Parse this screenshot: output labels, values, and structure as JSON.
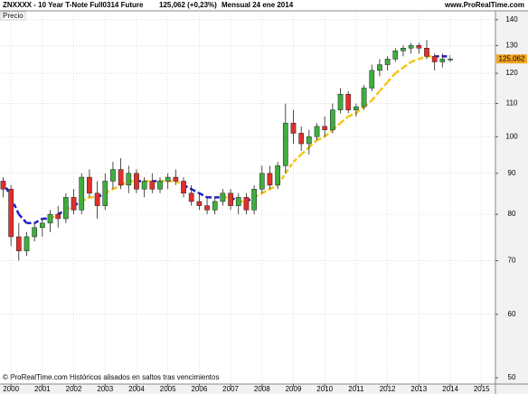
{
  "chart_data": {
    "type": "candlestick",
    "title": "ZNXXXX - 10 Year T-Note Full0314 Future",
    "quote": "125,062 (+0,23%)",
    "period": "Mensual  24 ene 2014",
    "source": "www.ProRealTime.com",
    "indicator_label": "Precio",
    "footnote": "© ProRealTime.com Históricos alisados en saltos tras vencimientos",
    "x": [
      1999.75,
      2000,
      2000.25,
      2000.5,
      2000.75,
      2001,
      2001.25,
      2001.5,
      2001.75,
      2002,
      2002.25,
      2002.5,
      2002.75,
      2003,
      2003.25,
      2003.5,
      2003.75,
      2004,
      2004.25,
      2004.5,
      2004.75,
      2005,
      2005.25,
      2005.5,
      2005.75,
      2006,
      2006.25,
      2006.5,
      2006.75,
      2007,
      2007.25,
      2007.5,
      2007.75,
      2008,
      2008.25,
      2008.5,
      2008.75,
      2009,
      2009.25,
      2009.5,
      2009.75,
      2010,
      2010.25,
      2010.5,
      2010.75,
      2011,
      2011.25,
      2011.5,
      2011.75,
      2012,
      2012.25,
      2012.5,
      2012.75,
      2013,
      2013.25,
      2013.5,
      2013.75,
      2014
    ],
    "open": [
      88,
      86,
      75,
      72,
      75,
      77,
      78,
      80,
      79,
      84,
      81,
      89,
      85,
      82,
      88,
      91,
      87,
      90,
      86,
      88,
      86,
      88,
      89,
      88,
      85,
      83,
      82,
      81,
      83,
      85,
      82,
      84,
      81,
      86,
      90,
      87,
      92,
      104,
      101,
      98,
      100,
      103,
      102,
      108,
      113,
      108,
      109,
      115,
      121,
      123,
      125,
      128,
      129,
      130,
      129,
      126,
      124,
      124.7
    ],
    "high": [
      89,
      87,
      78,
      76,
      78,
      79,
      81,
      82,
      85,
      86,
      90,
      91,
      88,
      90,
      93,
      94,
      92,
      91,
      89,
      90,
      89,
      90,
      91,
      89,
      87,
      85,
      84,
      84,
      86,
      86,
      85,
      85,
      87,
      92,
      92,
      93,
      110,
      108,
      103,
      102,
      104,
      106,
      110,
      115,
      114,
      110,
      116,
      123,
      125,
      126,
      129,
      130,
      131,
      131,
      132,
      127,
      127,
      125.5
    ],
    "low": [
      84,
      73,
      70,
      71,
      74,
      75,
      76,
      77,
      78,
      80,
      80,
      84,
      79,
      81,
      86,
      86,
      85,
      85,
      84,
      85,
      85,
      86,
      87,
      84,
      82,
      81,
      80,
      80,
      82,
      81,
      80,
      80,
      80,
      85,
      86,
      86,
      90,
      98,
      96,
      95,
      99,
      100,
      101,
      107,
      107,
      106,
      108,
      114,
      119,
      121,
      124,
      126,
      127,
      127,
      125,
      121,
      122,
      124
    ],
    "close": [
      86,
      75,
      72,
      75,
      77,
      78,
      80,
      79,
      84,
      81,
      89,
      85,
      82,
      88,
      91,
      87,
      90,
      86,
      88,
      86,
      88,
      89,
      88,
      85,
      83,
      82,
      81,
      83,
      85,
      82,
      84,
      81,
      86,
      90,
      87,
      92,
      104,
      101,
      98,
      100,
      103,
      102,
      108,
      113,
      108,
      109,
      115,
      121,
      123,
      125,
      128,
      129,
      130,
      129,
      126,
      124,
      125,
      125.062
    ],
    "last_label": "125,062",
    "moving_average": [
      88,
      84,
      80,
      78,
      78,
      79,
      79,
      80,
      81,
      82,
      83,
      84,
      84,
      85,
      86,
      87,
      88,
      88,
      88,
      88,
      88,
      88,
      88,
      87,
      86,
      85,
      84,
      84,
      84,
      84,
      83,
      83,
      84,
      85,
      86,
      87,
      90,
      93,
      95,
      97,
      99,
      100,
      102,
      104,
      106,
      107,
      109,
      111,
      114,
      117,
      120,
      122,
      124,
      125,
      126,
      126,
      126,
      126
    ],
    "up_color": "#3fae3f",
    "down_color": "#e0302b",
    "ma_above_color": "#1f1fc8",
    "ma_below_color": "#f5c518",
    "last_color": "#f5a623",
    "log_scale": true,
    "grid": true,
    "xlim": [
      1999.65,
      2015.44
    ],
    "xticks": [
      2000,
      2001,
      2002,
      2003,
      2004,
      2005,
      2006,
      2007,
      2008,
      2009,
      2010,
      2011,
      2012,
      2013,
      2014,
      2015
    ],
    "ylim": [
      49.1,
      143.6
    ],
    "yticks": [
      50,
      60,
      70,
      80,
      90,
      100,
      110,
      120,
      130,
      140
    ]
  }
}
